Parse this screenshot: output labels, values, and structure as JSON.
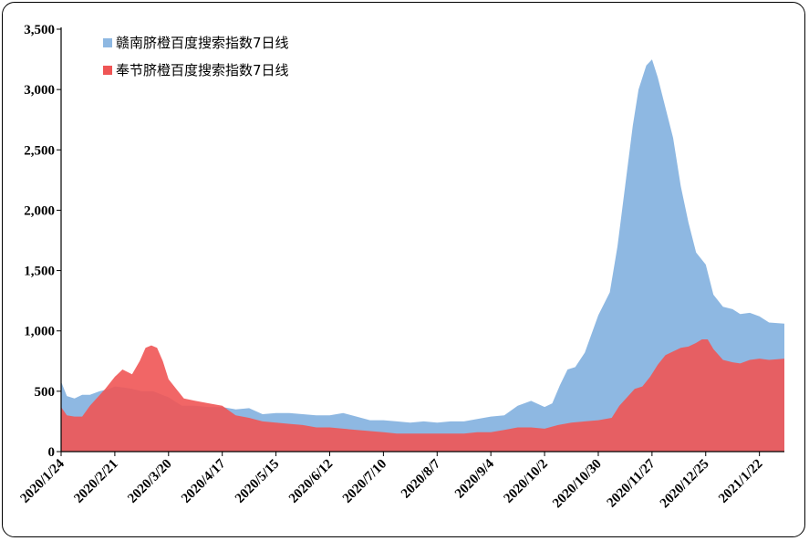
{
  "chart_data": {
    "type": "area",
    "ylim": [
      0,
      3500
    ],
    "y_ticks": [
      0,
      500,
      1000,
      1500,
      2000,
      2500,
      3000,
      3500
    ],
    "y_tick_labels": [
      "0",
      "500",
      "1,000",
      "1,500",
      "2,000",
      "2,500",
      "3,000",
      "3,500"
    ],
    "x_start": "2020-01-24",
    "x_ticks": [
      "2020/1/24",
      "2020/2/21",
      "2020/3/20",
      "2020/4/17",
      "2020/5/15",
      "2020/6/12",
      "2020/7/10",
      "2020/8/7",
      "2020/9/4",
      "2020/10/2",
      "2020/10/30",
      "2020/11/27",
      "2020/12/25",
      "2021/1/22"
    ],
    "x_end": "2021-02-04",
    "grid": false,
    "legend_position": "top-left",
    "series": [
      {
        "name": "赣南脐橙百度搜索指数7日线",
        "color": "#8EB8E2",
        "points": [
          [
            "2020-01-24",
            580
          ],
          [
            "2020-01-27",
            460
          ],
          [
            "2020-01-31",
            440
          ],
          [
            "2020-02-04",
            470
          ],
          [
            "2020-02-08",
            470
          ],
          [
            "2020-02-13",
            500
          ],
          [
            "2020-02-18",
            520
          ],
          [
            "2020-02-21",
            540
          ],
          [
            "2020-02-26",
            530
          ],
          [
            "2020-03-01",
            520
          ],
          [
            "2020-03-06",
            500
          ],
          [
            "2020-03-12",
            500
          ],
          [
            "2020-03-20",
            450
          ],
          [
            "2020-03-27",
            380
          ],
          [
            "2020-04-03",
            380
          ],
          [
            "2020-04-10",
            370
          ],
          [
            "2020-04-17",
            370
          ],
          [
            "2020-04-24",
            350
          ],
          [
            "2020-05-01",
            360
          ],
          [
            "2020-05-08",
            310
          ],
          [
            "2020-05-15",
            320
          ],
          [
            "2020-05-22",
            320
          ],
          [
            "2020-05-29",
            310
          ],
          [
            "2020-06-05",
            300
          ],
          [
            "2020-06-12",
            300
          ],
          [
            "2020-06-19",
            320
          ],
          [
            "2020-06-26",
            290
          ],
          [
            "2020-07-03",
            260
          ],
          [
            "2020-07-10",
            260
          ],
          [
            "2020-07-17",
            250
          ],
          [
            "2020-07-24",
            240
          ],
          [
            "2020-07-31",
            250
          ],
          [
            "2020-08-07",
            240
          ],
          [
            "2020-08-14",
            250
          ],
          [
            "2020-08-21",
            250
          ],
          [
            "2020-08-28",
            270
          ],
          [
            "2020-09-04",
            290
          ],
          [
            "2020-09-11",
            300
          ],
          [
            "2020-09-18",
            380
          ],
          [
            "2020-09-25",
            420
          ],
          [
            "2020-10-02",
            370
          ],
          [
            "2020-10-06",
            400
          ],
          [
            "2020-10-10",
            550
          ],
          [
            "2020-10-14",
            680
          ],
          [
            "2020-10-18",
            700
          ],
          [
            "2020-10-23",
            820
          ],
          [
            "2020-10-30",
            1130
          ],
          [
            "2020-11-05",
            1320
          ],
          [
            "2020-11-09",
            1700
          ],
          [
            "2020-11-13",
            2200
          ],
          [
            "2020-11-17",
            2700
          ],
          [
            "2020-11-20",
            3000
          ],
          [
            "2020-11-24",
            3200
          ],
          [
            "2020-11-27",
            3250
          ],
          [
            "2020-11-30",
            3100
          ],
          [
            "2020-12-04",
            2850
          ],
          [
            "2020-12-08",
            2600
          ],
          [
            "2020-12-12",
            2200
          ],
          [
            "2020-12-16",
            1900
          ],
          [
            "2020-12-20",
            1650
          ],
          [
            "2020-12-25",
            1550
          ],
          [
            "2020-12-29",
            1300
          ],
          [
            "2021-01-03",
            1200
          ],
          [
            "2021-01-08",
            1180
          ],
          [
            "2021-01-12",
            1140
          ],
          [
            "2021-01-17",
            1150
          ],
          [
            "2021-01-22",
            1120
          ],
          [
            "2021-01-27",
            1070
          ],
          [
            "2021-02-04",
            1060
          ]
        ]
      },
      {
        "name": "奉节脐橙百度搜索指数7日线",
        "color": "#EF5555",
        "points": [
          [
            "2020-01-24",
            370
          ],
          [
            "2020-01-27",
            300
          ],
          [
            "2020-01-31",
            290
          ],
          [
            "2020-02-04",
            290
          ],
          [
            "2020-02-08",
            380
          ],
          [
            "2020-02-12",
            450
          ],
          [
            "2020-02-16",
            520
          ],
          [
            "2020-02-21",
            620
          ],
          [
            "2020-02-25",
            680
          ],
          [
            "2020-03-01",
            640
          ],
          [
            "2020-03-05",
            750
          ],
          [
            "2020-03-08",
            860
          ],
          [
            "2020-03-11",
            880
          ],
          [
            "2020-03-14",
            860
          ],
          [
            "2020-03-17",
            750
          ],
          [
            "2020-03-20",
            600
          ],
          [
            "2020-03-24",
            520
          ],
          [
            "2020-03-28",
            440
          ],
          [
            "2020-04-03",
            420
          ],
          [
            "2020-04-10",
            400
          ],
          [
            "2020-04-17",
            380
          ],
          [
            "2020-04-24",
            300
          ],
          [
            "2020-05-01",
            280
          ],
          [
            "2020-05-08",
            250
          ],
          [
            "2020-05-15",
            240
          ],
          [
            "2020-05-22",
            230
          ],
          [
            "2020-05-29",
            220
          ],
          [
            "2020-06-05",
            200
          ],
          [
            "2020-06-12",
            200
          ],
          [
            "2020-06-19",
            190
          ],
          [
            "2020-06-26",
            180
          ],
          [
            "2020-07-03",
            170
          ],
          [
            "2020-07-10",
            160
          ],
          [
            "2020-07-17",
            150
          ],
          [
            "2020-07-24",
            150
          ],
          [
            "2020-07-31",
            150
          ],
          [
            "2020-08-07",
            150
          ],
          [
            "2020-08-14",
            150
          ],
          [
            "2020-08-21",
            150
          ],
          [
            "2020-08-28",
            160
          ],
          [
            "2020-09-04",
            160
          ],
          [
            "2020-09-11",
            180
          ],
          [
            "2020-09-18",
            200
          ],
          [
            "2020-09-25",
            200
          ],
          [
            "2020-10-02",
            190
          ],
          [
            "2020-10-09",
            220
          ],
          [
            "2020-10-16",
            240
          ],
          [
            "2020-10-23",
            250
          ],
          [
            "2020-10-30",
            260
          ],
          [
            "2020-11-06",
            280
          ],
          [
            "2020-11-10",
            380
          ],
          [
            "2020-11-14",
            450
          ],
          [
            "2020-11-18",
            520
          ],
          [
            "2020-11-22",
            540
          ],
          [
            "2020-11-26",
            620
          ],
          [
            "2020-11-30",
            720
          ],
          [
            "2020-12-04",
            800
          ],
          [
            "2020-12-08",
            830
          ],
          [
            "2020-12-12",
            860
          ],
          [
            "2020-12-16",
            870
          ],
          [
            "2020-12-20",
            900
          ],
          [
            "2020-12-23",
            930
          ],
          [
            "2020-12-26",
            930
          ],
          [
            "2020-12-29",
            850
          ],
          [
            "2021-01-03",
            760
          ],
          [
            "2021-01-08",
            740
          ],
          [
            "2021-01-12",
            730
          ],
          [
            "2021-01-17",
            760
          ],
          [
            "2021-01-22",
            770
          ],
          [
            "2021-01-27",
            760
          ],
          [
            "2021-02-04",
            770
          ]
        ]
      }
    ]
  }
}
